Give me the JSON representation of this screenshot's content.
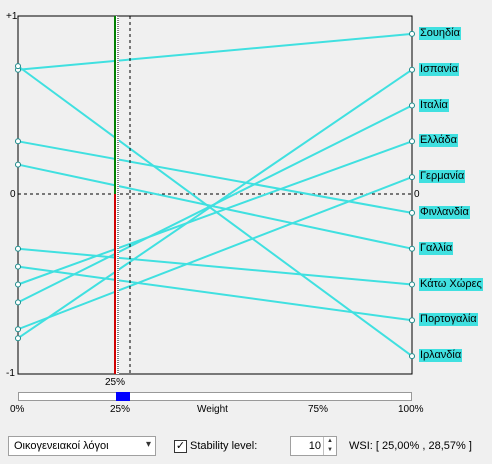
{
  "chart_data": {
    "type": "line",
    "title": "",
    "xlabel": "Weight",
    "x_ticks": [
      "0%",
      "25%",
      "Weight",
      "75%",
      "100%"
    ],
    "y_ticks": [
      "+1",
      "0",
      "-1"
    ],
    "ylim": [
      -1,
      1
    ],
    "right_zero_label": "0",
    "current_weight_label": "25%",
    "current_weight": 0.25,
    "stability_range": [
      0.25,
      0.2857
    ],
    "series": [
      {
        "name": "Σουηδία",
        "start": 0.7,
        "end": 0.9
      },
      {
        "name": "Ισπανία",
        "start": -0.8,
        "end": 0.7
      },
      {
        "name": "Ιταλία",
        "start": -0.6,
        "end": 0.5
      },
      {
        "name": "Ελλάδα",
        "start": -0.5,
        "end": 0.3
      },
      {
        "name": "Γερμανία",
        "start": -0.75,
        "end": 0.1
      },
      {
        "name": "Φινλανδία",
        "start": 0.3,
        "end": -0.1
      },
      {
        "name": "Γαλλία",
        "start": 0.17,
        "end": -0.3
      },
      {
        "name": "Κάτω Χώρες",
        "start": -0.3,
        "end": -0.5
      },
      {
        "name": "Πορτογαλία",
        "start": -0.4,
        "end": -0.7
      },
      {
        "name": "Ιρλανδία",
        "start": 0.72,
        "end": -0.9
      }
    ],
    "line_color": "#40e0e0"
  },
  "controls": {
    "factor_select": "Οικογενειακοί λόγοι",
    "stability_checked": true,
    "stability_label": "Stability level:",
    "stability_value": "10",
    "wsi_text": "WSI: [ 25,00% , 28,57% ]"
  }
}
